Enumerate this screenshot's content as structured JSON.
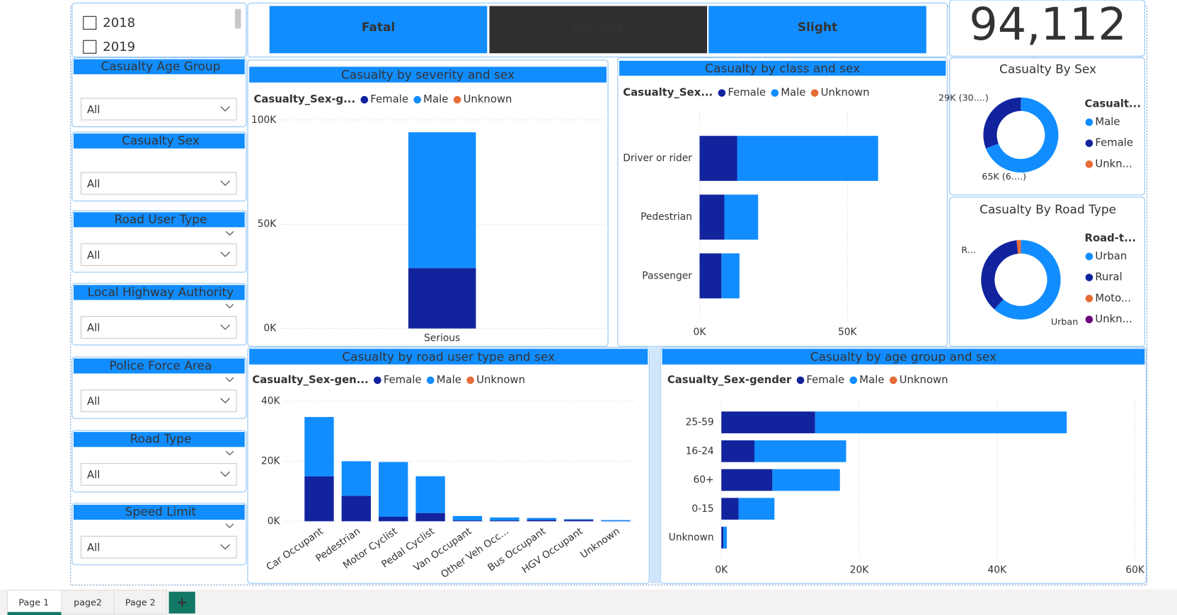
{
  "year_slicer": {
    "items": [
      "2018",
      "2019"
    ]
  },
  "slicers": [
    {
      "title": "Casualty Age Group",
      "selection": "All"
    },
    {
      "title": "Casualty Sex",
      "selection": "All"
    },
    {
      "title": "Road User Type",
      "selection": "All"
    },
    {
      "title": "Local Highway Authority",
      "selection": "All"
    },
    {
      "title": "Police Force Area",
      "selection": "All"
    },
    {
      "title": "Road Type",
      "selection": "All"
    },
    {
      "title": "Speed Limit",
      "selection": "All"
    }
  ],
  "severity_buttons": [
    {
      "label": "Fatal",
      "selected": false
    },
    {
      "label": "Serious",
      "selected": true
    },
    {
      "label": "Slight",
      "selected": false
    }
  ],
  "kpi_value": "94,112",
  "chart_data": [
    {
      "type": "bar",
      "stacked": true,
      "grid": true,
      "title": "Casualty by severity and sex",
      "legend_title": "Casualty_Sex-g...",
      "categories": [
        "Serious"
      ],
      "series": [
        {
          "name": "Female",
          "color": "#12239E",
          "values": [
            29000
          ]
        },
        {
          "name": "Male",
          "color": "#118DFF",
          "values": [
            65100
          ]
        },
        {
          "name": "Unknown",
          "color": "#E66C37",
          "values": [
            0
          ]
        }
      ],
      "ylim": [
        0,
        100000
      ],
      "yticks": [
        {
          "value": 0,
          "label": "0K"
        },
        {
          "value": 50000,
          "label": "50K"
        },
        {
          "value": 100000,
          "label": "100K"
        }
      ]
    },
    {
      "type": "hbar",
      "stacked": true,
      "grid": true,
      "title": "Casualty by class and sex",
      "legend_title": "Casualty_Sex...",
      "categories": [
        "Driver or rider",
        "Pedestrian",
        "Passenger"
      ],
      "series": [
        {
          "name": "Female",
          "color": "#12239E",
          "values": [
            12700,
            8400,
            7400
          ]
        },
        {
          "name": "Male",
          "color": "#118DFF",
          "values": [
            47700,
            11400,
            6100
          ]
        },
        {
          "name": "Unknown",
          "color": "#E66C37",
          "values": [
            0,
            0,
            0
          ]
        }
      ],
      "xlim": [
        0,
        80000
      ],
      "xticks": [
        {
          "value": 0,
          "label": "0K"
        },
        {
          "value": 50000,
          "label": "50K"
        }
      ]
    },
    {
      "type": "bar",
      "stacked": true,
      "grid": true,
      "title": "Casualty by road user type and sex",
      "legend_title": "Casualty_Sex-gen...",
      "categories": [
        "Car Occupant",
        "Pedestrian",
        "Motor Cyclist",
        "Pedal Cyclist",
        "Van Occupant",
        "Other Veh Occ...",
        "Bus Occupant",
        "HGV Occupant",
        "Unknown"
      ],
      "series": [
        {
          "name": "Female",
          "color": "#12239E",
          "values": [
            15000,
            8500,
            1500,
            2750,
            300,
            300,
            500,
            500,
            100
          ]
        },
        {
          "name": "Male",
          "color": "#118DFF",
          "values": [
            19750,
            11500,
            18250,
            12250,
            1450,
            950,
            600,
            200,
            300
          ]
        },
        {
          "name": "Unknown",
          "color": "#E66C37",
          "values": [
            0,
            0,
            0,
            0,
            0,
            0,
            0,
            0,
            0
          ]
        }
      ],
      "ylim": [
        0,
        40000
      ],
      "yticks": [
        {
          "value": 0,
          "label": "0K"
        },
        {
          "value": 20000,
          "label": "20K"
        },
        {
          "value": 40000,
          "label": "40K"
        }
      ]
    },
    {
      "type": "hbar",
      "stacked": true,
      "grid": true,
      "title": "Casualty by age group and sex",
      "legend_title": "Casualty_Sex-gender",
      "categories": [
        "25-59",
        "16-24",
        "60+",
        "0-15",
        "Unknown"
      ],
      "series": [
        {
          "name": "Female",
          "color": "#12239E",
          "values": [
            13600,
            4800,
            7400,
            2500,
            300
          ]
        },
        {
          "name": "Male",
          "color": "#118DFF",
          "values": [
            36500,
            13300,
            9800,
            5200,
            500
          ]
        },
        {
          "name": "Unknown",
          "color": "#E66C37",
          "values": [
            0,
            0,
            0,
            0,
            0
          ]
        }
      ],
      "xlim": [
        0,
        60000
      ],
      "xticks": [
        {
          "value": 0,
          "label": "0K"
        },
        {
          "value": 20000,
          "label": "20K"
        },
        {
          "value": 40000,
          "label": "40K"
        },
        {
          "value": 60000,
          "label": "60K"
        }
      ]
    },
    {
      "type": "donut",
      "title": "Casualty By Sex",
      "legend_title": "Casualt...",
      "categories": [
        "Male",
        "Female",
        "Unkn..."
      ],
      "values": [
        65100,
        29000,
        12
      ],
      "colors": [
        "#118DFF",
        "#12239E",
        "#E66C37"
      ],
      "value_labels": [
        "65K (6....)",
        "29K (30....)",
        null
      ]
    },
    {
      "type": "donut",
      "title": "Casualty By Road Type",
      "legend_title": "Road-t...",
      "categories": [
        "Urban",
        "Rural",
        "Moto...",
        "Unkn..."
      ],
      "values": [
        58000,
        34500,
        1600,
        12
      ],
      "colors": [
        "#118DFF",
        "#12239E",
        "#E66C37",
        "#6B007B"
      ],
      "slice_labels": [
        "Urban",
        "R...",
        null,
        null
      ]
    }
  ],
  "page_tabs": {
    "tabs": [
      "Page 1",
      "page2",
      "Page 2"
    ],
    "active": 0,
    "add_button": "+"
  }
}
